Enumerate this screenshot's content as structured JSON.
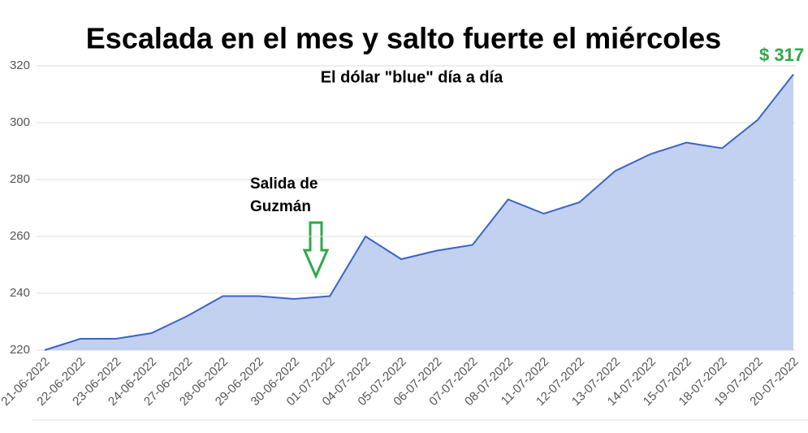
{
  "chart_data": {
    "type": "area",
    "title": "Escalada en el mes y salto fuerte el miércoles",
    "subtitle": "El dólar \"blue\" día a día",
    "categories": [
      "21-06-2022",
      "22-06-2022",
      "23-06-2022",
      "24-06-2022",
      "27-06-2022",
      "28-06-2022",
      "29-06-2022",
      "30-06-2022",
      "01-07-2022",
      "04-07-2022",
      "05-07-2022",
      "06-07-2022",
      "07-07-2022",
      "08-07-2022",
      "11-07-2022",
      "12-07-2022",
      "13-07-2022",
      "14-07-2022",
      "15-07-2022",
      "18-07-2022",
      "19-07-2022",
      "20-07-2022"
    ],
    "series": [
      {
        "color": "#3a64c8",
        "fill": "#c2d1f0",
        "values": [
          220,
          224,
          224,
          226,
          232,
          239,
          239,
          238,
          239,
          260,
          252,
          255,
          257,
          273,
          268,
          272,
          283,
          289,
          293,
          291,
          301,
          317
        ]
      }
    ],
    "ylim": [
      220,
      320
    ],
    "yticks": [
      220,
      240,
      260,
      280,
      300,
      320
    ],
    "grid": true,
    "annotations": [
      {
        "lines": [
          "Salida de",
          "Guzmán"
        ],
        "color": "#000000"
      },
      {
        "text": "$ 317",
        "color": "#2ea84a"
      }
    ]
  }
}
